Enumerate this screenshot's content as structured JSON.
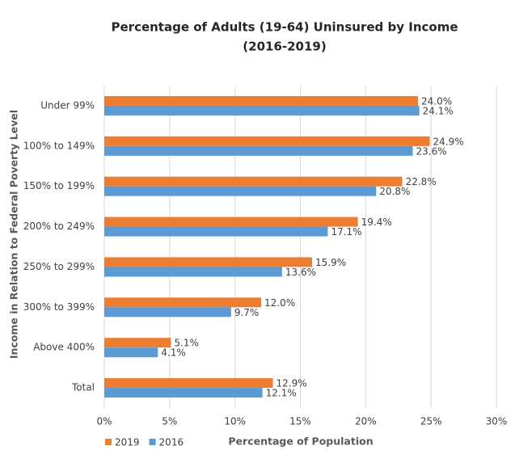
{
  "chart_data": {
    "type": "hbar",
    "title_lines": [
      "Percentage of Adults (19-64) Uninsured by Income",
      "(2016-2019)"
    ],
    "x_label": "Percentage of Population",
    "y_label": "Income in Relation to Federal Poverty Level",
    "categories": [
      "Under 99%",
      "100% to 149%",
      "150% to 199%",
      "200% to 249%",
      "250% to 299%",
      "300% to 399%",
      "Above 400%",
      "Total"
    ],
    "series": [
      {
        "name": "2019",
        "color": "#ed7d31",
        "values": [
          24.0,
          24.9,
          22.8,
          19.4,
          15.9,
          12.0,
          5.1,
          12.9
        ],
        "value_labels": [
          "24.0%",
          "24.9%",
          "22.8%",
          "19.4%",
          "15.9%",
          "12.0%",
          "5.1%",
          "12.9%"
        ]
      },
      {
        "name": "2016",
        "color": "#5b9bd5",
        "values": [
          24.1,
          23.6,
          20.8,
          17.1,
          13.6,
          9.7,
          4.1,
          12.1
        ],
        "value_labels": [
          "24.1%",
          "23.6%",
          "20.8%",
          "17.1%",
          "13.6%",
          "9.7%",
          "4.1%",
          "12.1%"
        ]
      }
    ],
    "xlim": [
      0,
      30
    ],
    "xticks": [
      {
        "value": 0,
        "label": "0%"
      },
      {
        "value": 5,
        "label": "5%"
      },
      {
        "value": 10,
        "label": "10%"
      },
      {
        "value": 15,
        "label": "15%"
      },
      {
        "value": 20,
        "label": "20%"
      },
      {
        "value": 25,
        "label": "25%"
      },
      {
        "value": 30,
        "label": "30%"
      }
    ],
    "grid": true,
    "legend": "bottom-left"
  }
}
